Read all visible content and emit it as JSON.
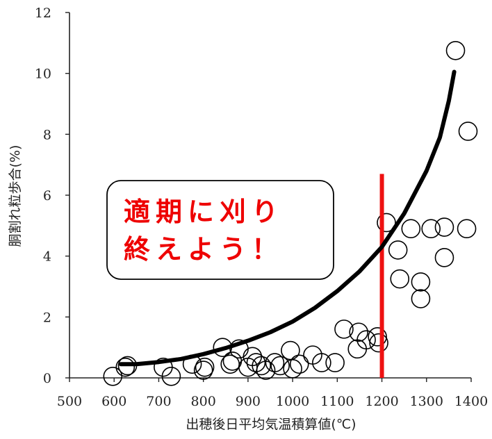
{
  "chart_data": {
    "type": "scatter",
    "xlabel": "出穂後日平均気温積算値(℃)",
    "ylabel": "胴割れ粒歩合(%)",
    "xlim": [
      500,
      1400
    ],
    "ylim": [
      0,
      12
    ],
    "x_ticks": [
      "500",
      "600",
      "700",
      "800",
      "900",
      "1000",
      "1100",
      "1200",
      "1300",
      "1400"
    ],
    "y_ticks": [
      "0",
      "2",
      "4",
      "6",
      "8",
      "10",
      "12"
    ],
    "points": [
      {
        "x": 597,
        "y": 0.05
      },
      {
        "x": 625,
        "y": 0.35
      },
      {
        "x": 630,
        "y": 0.4
      },
      {
        "x": 710,
        "y": 0.35
      },
      {
        "x": 728,
        "y": 0.05
      },
      {
        "x": 775,
        "y": 0.45
      },
      {
        "x": 800,
        "y": 0.25
      },
      {
        "x": 803,
        "y": 0.35
      },
      {
        "x": 843,
        "y": 1.0
      },
      {
        "x": 860,
        "y": 0.45
      },
      {
        "x": 865,
        "y": 0.55
      },
      {
        "x": 880,
        "y": 0.95
      },
      {
        "x": 900,
        "y": 0.35
      },
      {
        "x": 910,
        "y": 0.7
      },
      {
        "x": 918,
        "y": 0.5
      },
      {
        "x": 930,
        "y": 0.4
      },
      {
        "x": 940,
        "y": 0.25
      },
      {
        "x": 960,
        "y": 0.5
      },
      {
        "x": 972,
        "y": 0.4
      },
      {
        "x": 995,
        "y": 0.9
      },
      {
        "x": 1000,
        "y": 0.3
      },
      {
        "x": 1015,
        "y": 0.45
      },
      {
        "x": 1045,
        "y": 0.75
      },
      {
        "x": 1065,
        "y": 0.5
      },
      {
        "x": 1095,
        "y": 0.5
      },
      {
        "x": 1115,
        "y": 1.6
      },
      {
        "x": 1145,
        "y": 0.95
      },
      {
        "x": 1148,
        "y": 1.5
      },
      {
        "x": 1165,
        "y": 1.25
      },
      {
        "x": 1190,
        "y": 1.35
      },
      {
        "x": 1193,
        "y": 1.15
      },
      {
        "x": 1210,
        "y": 5.1
      },
      {
        "x": 1236,
        "y": 4.2
      },
      {
        "x": 1240,
        "y": 3.25
      },
      {
        "x": 1265,
        "y": 4.9
      },
      {
        "x": 1287,
        "y": 3.15
      },
      {
        "x": 1287,
        "y": 2.6
      },
      {
        "x": 1310,
        "y": 4.9
      },
      {
        "x": 1340,
        "y": 4.95
      },
      {
        "x": 1340,
        "y": 3.95
      },
      {
        "x": 1365,
        "y": 10.75
      },
      {
        "x": 1390,
        "y": 4.9
      },
      {
        "x": 1393,
        "y": 8.1
      }
    ],
    "trend_curve": [
      {
        "x": 615,
        "y": 0.45
      },
      {
        "x": 650,
        "y": 0.45
      },
      {
        "x": 700,
        "y": 0.52
      },
      {
        "x": 750,
        "y": 0.62
      },
      {
        "x": 800,
        "y": 0.78
      },
      {
        "x": 850,
        "y": 0.98
      },
      {
        "x": 900,
        "y": 1.22
      },
      {
        "x": 950,
        "y": 1.5
      },
      {
        "x": 1000,
        "y": 1.85
      },
      {
        "x": 1050,
        "y": 2.3
      },
      {
        "x": 1100,
        "y": 2.85
      },
      {
        "x": 1150,
        "y": 3.5
      },
      {
        "x": 1200,
        "y": 4.3
      },
      {
        "x": 1250,
        "y": 5.4
      },
      {
        "x": 1300,
        "y": 6.8
      },
      {
        "x": 1330,
        "y": 7.9
      },
      {
        "x": 1350,
        "y": 9.1
      },
      {
        "x": 1362,
        "y": 10.05
      }
    ],
    "reference_line": {
      "x": 1200,
      "y_from": 0,
      "y_to": 6.7,
      "color": "#ee1111"
    },
    "colors": {
      "points": "#000000",
      "curve": "#000000",
      "axis": "#222222"
    },
    "annotation": {
      "line1": "適期に刈り",
      "line2": "終えよう！",
      "color": "#ee0000"
    }
  }
}
